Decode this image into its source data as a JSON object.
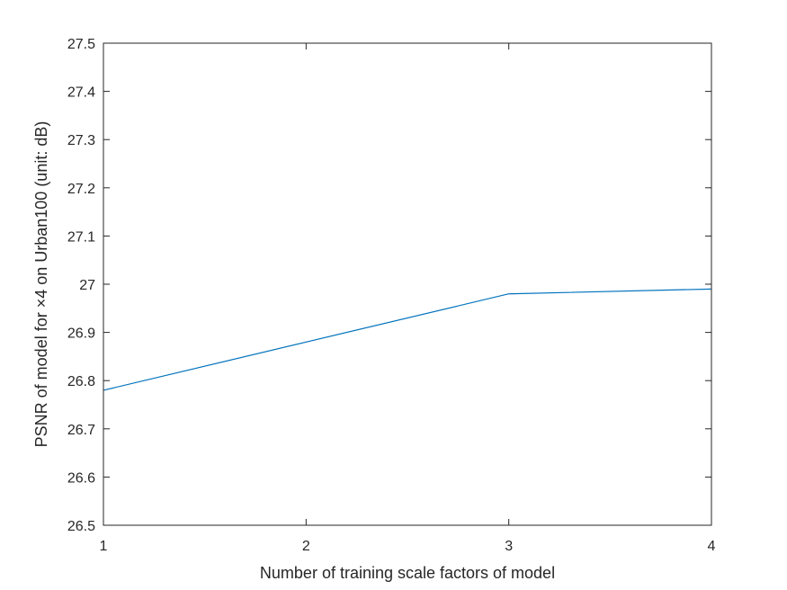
{
  "chart_data": {
    "type": "line",
    "title": "",
    "xlabel": "Number of training scale factors of model",
    "ylabel": "PSNR of model for ×4 on Urban100 (unit: dB)",
    "xlim": [
      1,
      4
    ],
    "ylim": [
      26.5,
      27.5
    ],
    "x_ticks": [
      1,
      2,
      3,
      4
    ],
    "x_tick_labels": [
      "1",
      "2",
      "3",
      "4"
    ],
    "y_ticks": [
      26.5,
      26.6,
      26.7,
      26.8,
      26.9,
      27.0,
      27.1,
      27.2,
      27.3,
      27.4,
      27.5
    ],
    "y_tick_labels": [
      "26.5",
      "26.6",
      "26.7",
      "26.8",
      "26.9",
      "27",
      "27.1",
      "27.2",
      "27.3",
      "27.4",
      "27.5"
    ],
    "grid": false,
    "series": [
      {
        "x": [
          1,
          2,
          3,
          4
        ],
        "values": [
          26.78,
          26.88,
          26.98,
          26.99
        ],
        "color": "#0072BD"
      }
    ]
  }
}
